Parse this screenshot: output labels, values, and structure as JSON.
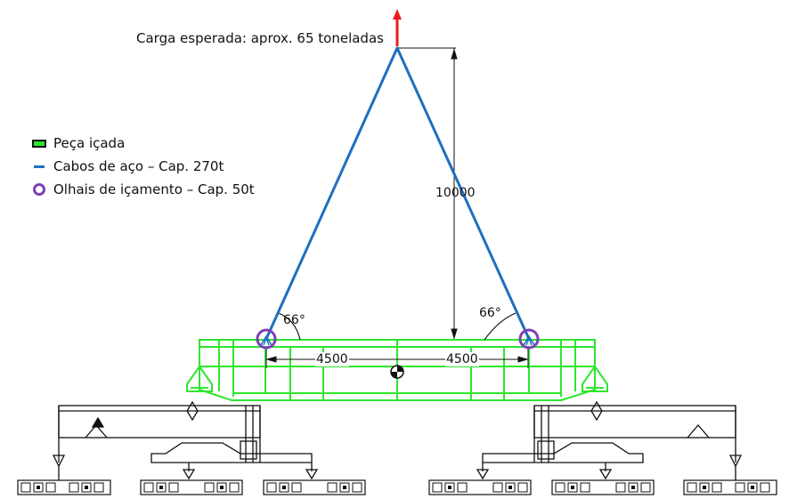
{
  "load_label": "Carga esperada: aprox. 65 toneladas",
  "dimensions": {
    "height": "10000",
    "span_left": "4500",
    "span_right": "4500",
    "angle_left": "66°",
    "angle_right": "66°"
  },
  "legend": {
    "items": [
      {
        "label": "Peça içada",
        "symbol": "green-rectangle"
      },
      {
        "label": "Cabos de aço – Cap. 270t",
        "symbol": "blue-line"
      },
      {
        "label": "Olhais de içamento – Cap. 50t",
        "symbol": "purple-ring"
      }
    ]
  },
  "colors": {
    "piece": "#2ee62e",
    "cable": "#1e6fc0",
    "lug": "#7e3fb5",
    "arrow": "#e81d1d",
    "lines": "#111111"
  }
}
